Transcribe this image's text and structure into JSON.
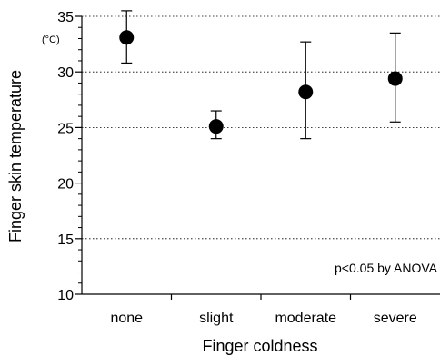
{
  "chart_data": {
    "type": "scatter",
    "categories": [
      "none",
      "slight",
      "moderate",
      "severe"
    ],
    "points": [
      {
        "category": "none",
        "mean": 33.1,
        "err_low": 30.8,
        "err_high": 35.5
      },
      {
        "category": "slight",
        "mean": 25.1,
        "err_low": 24.0,
        "err_high": 26.5
      },
      {
        "category": "moderate",
        "mean": 28.2,
        "err_low": 24.0,
        "err_high": 32.7
      },
      {
        "category": "severe",
        "mean": 29.4,
        "err_low": 25.5,
        "err_high": 33.5
      }
    ],
    "xlabel": "Finger coldness",
    "ylabel": "Finger skin temperature",
    "yunit": "(°C)",
    "ylim": [
      10,
      35
    ],
    "yticks": [
      "10",
      "15",
      "20",
      "25",
      "30",
      "35"
    ],
    "grid": "horizontal dotted",
    "annotation": "p<0.05 by ANOVA"
  }
}
